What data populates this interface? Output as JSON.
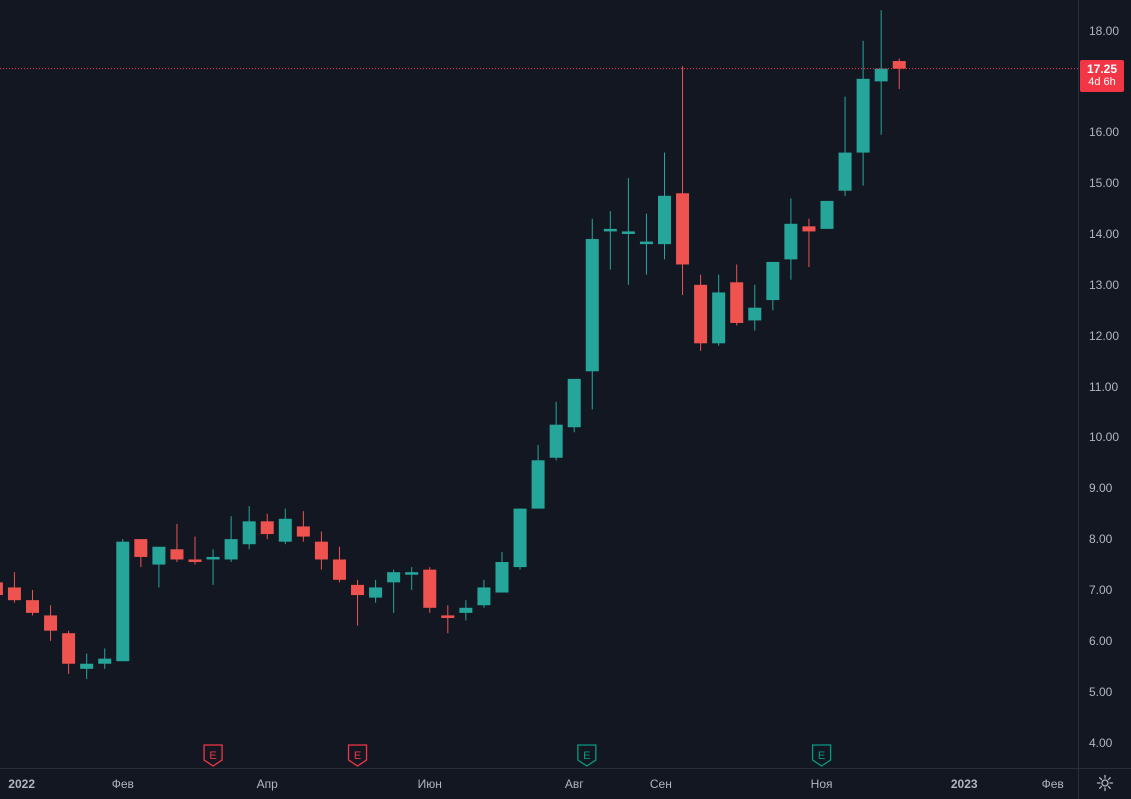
{
  "chart_data": {
    "type": "candlestick",
    "y_ticks": [
      "18.00",
      "17.00",
      "16.00",
      "15.00",
      "14.00",
      "13.00",
      "12.00",
      "11.00",
      "10.00",
      "9.00",
      "8.00",
      "7.00",
      "6.00",
      "5.00",
      "4.00"
    ],
    "y_range": [
      3.5,
      18.6
    ],
    "x_ticks": [
      {
        "label": "2022",
        "index": 1.4,
        "bold": true
      },
      {
        "label": "Фев",
        "index": 7
      },
      {
        "label": "Апр",
        "index": 15
      },
      {
        "label": "Июн",
        "index": 24
      },
      {
        "label": "Авг",
        "index": 32
      },
      {
        "label": "Сен",
        "index": 36.8
      },
      {
        "label": "Ноя",
        "index": 45.7
      },
      {
        "label": "2023",
        "index": 53.6,
        "bold": true
      },
      {
        "label": "Фев",
        "index": 58.5
      }
    ],
    "candles": [
      [
        7.15,
        7.2,
        6.6,
        6.9
      ],
      [
        7.05,
        7.35,
        6.75,
        6.8
      ],
      [
        6.8,
        7.0,
        6.5,
        6.55
      ],
      [
        6.5,
        6.7,
        6.0,
        6.2
      ],
      [
        6.15,
        6.2,
        5.35,
        5.55
      ],
      [
        5.45,
        5.75,
        5.25,
        5.55
      ],
      [
        5.55,
        5.85,
        5.45,
        5.65
      ],
      [
        5.6,
        8.0,
        5.6,
        7.95
      ],
      [
        8.0,
        8.0,
        7.45,
        7.65
      ],
      [
        7.5,
        7.8,
        7.05,
        7.85
      ],
      [
        7.8,
        8.3,
        7.55,
        7.6
      ],
      [
        7.6,
        8.05,
        7.5,
        7.55
      ],
      [
        7.6,
        7.8,
        7.1,
        7.65
      ],
      [
        7.6,
        8.45,
        7.55,
        8.0
      ],
      [
        7.9,
        8.65,
        7.8,
        8.35
      ],
      [
        8.35,
        8.5,
        8.0,
        8.1
      ],
      [
        7.95,
        8.6,
        7.9,
        8.4
      ],
      [
        8.25,
        8.55,
        7.95,
        8.05
      ],
      [
        7.95,
        8.15,
        7.4,
        7.6
      ],
      [
        7.6,
        7.85,
        7.15,
        7.2
      ],
      [
        7.1,
        7.2,
        6.3,
        6.9
      ],
      [
        6.85,
        7.2,
        6.75,
        7.05
      ],
      [
        7.15,
        7.4,
        6.55,
        7.35
      ],
      [
        7.3,
        7.45,
        7.0,
        7.35
      ],
      [
        7.4,
        7.45,
        6.55,
        6.65
      ],
      [
        6.5,
        6.7,
        6.15,
        6.45
      ],
      [
        6.55,
        6.8,
        6.4,
        6.65
      ],
      [
        6.7,
        7.2,
        6.65,
        7.05
      ],
      [
        6.95,
        7.75,
        6.95,
        7.55
      ],
      [
        7.45,
        8.6,
        7.4,
        8.6
      ],
      [
        8.6,
        9.85,
        8.6,
        9.55
      ],
      [
        9.6,
        10.7,
        9.55,
        10.25
      ],
      [
        10.2,
        11.15,
        10.1,
        11.15
      ],
      [
        11.3,
        14.3,
        10.55,
        13.9
      ],
      [
        14.05,
        14.45,
        13.3,
        14.1
      ],
      [
        14.0,
        15.1,
        13.0,
        14.05
      ],
      [
        13.8,
        14.4,
        13.2,
        13.85
      ],
      [
        13.8,
        15.6,
        13.5,
        14.75
      ],
      [
        14.8,
        17.3,
        12.8,
        13.4
      ],
      [
        13.0,
        13.2,
        11.7,
        11.85
      ],
      [
        11.85,
        13.2,
        11.8,
        12.85
      ],
      [
        13.05,
        13.4,
        12.2,
        12.25
      ],
      [
        12.3,
        13.0,
        12.1,
        12.55
      ],
      [
        12.7,
        13.45,
        12.5,
        13.45
      ],
      [
        13.5,
        14.7,
        13.1,
        14.2
      ],
      [
        14.15,
        14.3,
        13.35,
        14.05
      ],
      [
        14.1,
        14.65,
        14.1,
        14.65
      ],
      [
        14.85,
        16.7,
        14.75,
        15.6
      ],
      [
        15.6,
        17.8,
        14.95,
        17.05
      ],
      [
        17.0,
        18.4,
        15.95,
        17.25
      ],
      [
        17.4,
        17.45,
        16.85,
        17.25
      ]
    ],
    "x_range": [
      0.2,
      59.9
    ],
    "current_price": {
      "value": "17.25",
      "countdown": "4d 6h",
      "y": 17.25
    },
    "earnings_markers": [
      {
        "index": 12.0,
        "label": "E",
        "color": "#f23645"
      },
      {
        "index": 20.0,
        "label": "E",
        "color": "#f23645"
      },
      {
        "index": 32.7,
        "label": "E",
        "color": "#089981"
      },
      {
        "index": 45.7,
        "label": "E",
        "color": "#089981"
      }
    ],
    "colors": {
      "up": "#26a69a",
      "down": "#ef5350",
      "background": "#131722",
      "grid": "#2a2e39",
      "text": "#b2b5be",
      "price_line": "#f23645"
    }
  }
}
